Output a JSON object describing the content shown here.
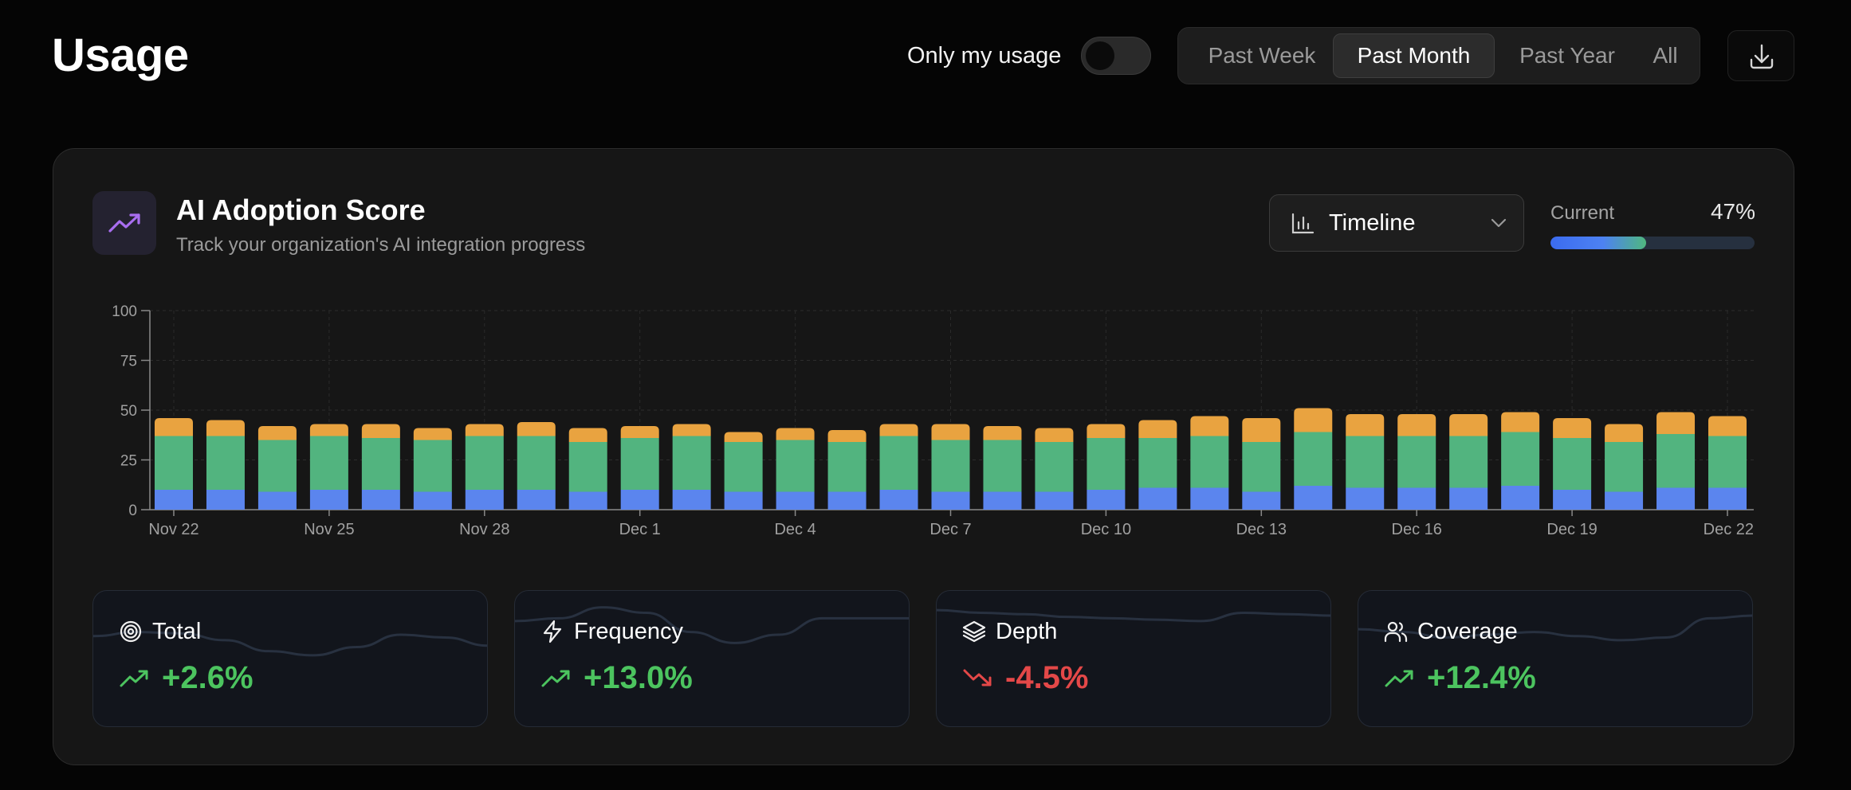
{
  "header": {
    "title": "Usage",
    "toggle_label": "Only my usage",
    "toggle_on": false,
    "ranges": [
      "Past Week",
      "Past Month",
      "Past Year",
      "All"
    ],
    "active_range": "Past Month",
    "download_icon": "download-icon"
  },
  "card": {
    "icon": "trending-up-icon",
    "title": "AI Adoption Score",
    "subtitle": "Track your organization's AI integration progress",
    "view_select": {
      "icon": "bar-chart-icon",
      "value": "Timeline",
      "chevron": "chevron-down-icon"
    },
    "progress": {
      "label": "Current",
      "value_text": "47%",
      "fraction": 0.47
    }
  },
  "chart_data": {
    "type": "bar",
    "stacked": true,
    "x_ticks": [
      "Nov 22",
      "Nov 25",
      "Nov 28",
      "Dec 1",
      "Dec 4",
      "Dec 7",
      "Dec 10",
      "Dec 13",
      "Dec 16",
      "Dec 19",
      "Dec 22"
    ],
    "y_ticks": [
      0,
      25,
      50,
      75,
      100
    ],
    "ylim": [
      0,
      100
    ],
    "grid": true,
    "categories": [
      "Nov 22",
      "Nov 23",
      "Nov 24",
      "Nov 25",
      "Nov 26",
      "Nov 27",
      "Nov 28",
      "Nov 29",
      "Nov 30",
      "Dec 1",
      "Dec 2",
      "Dec 3",
      "Dec 4",
      "Dec 5",
      "Dec 6",
      "Dec 7",
      "Dec 8",
      "Dec 9",
      "Dec 10",
      "Dec 11",
      "Dec 12",
      "Dec 13",
      "Dec 14",
      "Dec 15",
      "Dec 16",
      "Dec 17",
      "Dec 18",
      "Dec 19",
      "Dec 20",
      "Dec 21",
      "Dec 22"
    ],
    "series": [
      {
        "color": "#5b85ee",
        "values": [
          10,
          10,
          9,
          10,
          10,
          9,
          10,
          10,
          9,
          10,
          10,
          9,
          9,
          9,
          10,
          9,
          9,
          9,
          10,
          11,
          11,
          9,
          12,
          11,
          11,
          11,
          12,
          10,
          9,
          11,
          11
        ]
      },
      {
        "color": "#52b47f",
        "values": [
          27,
          27,
          26,
          27,
          26,
          26,
          27,
          27,
          25,
          26,
          27,
          25,
          26,
          25,
          27,
          26,
          26,
          25,
          26,
          25,
          26,
          25,
          27,
          26,
          26,
          26,
          27,
          26,
          25,
          27,
          26
        ]
      },
      {
        "color": "#e9a340",
        "values": [
          9,
          8,
          7,
          6,
          7,
          6,
          6,
          7,
          7,
          6,
          6,
          5,
          6,
          6,
          6,
          8,
          7,
          7,
          7,
          9,
          10,
          12,
          12,
          11,
          11,
          11,
          10,
          10,
          9,
          11,
          10
        ]
      }
    ]
  },
  "stats": [
    {
      "icon": "target-icon",
      "name": "Total",
      "trend_icon": "trend-up-icon",
      "value": "+2.6%",
      "color": "#4cc45f",
      "spark": [
        0.33,
        0.3,
        0.31,
        0.36,
        0.44,
        0.47,
        0.41,
        0.32,
        0.34,
        0.4
      ]
    },
    {
      "icon": "zap-icon",
      "name": "Frequency",
      "trend_icon": "trend-up-icon",
      "value": "+13.0%",
      "color": "#4cc45f",
      "spark": [
        0.22,
        0.2,
        0.12,
        0.16,
        0.3,
        0.38,
        0.32,
        0.2,
        0.2,
        0.2
      ]
    },
    {
      "icon": "layers-icon",
      "name": "Depth",
      "trend_icon": "trend-down-icon",
      "value": "-4.5%",
      "color": "#e44848",
      "spark": [
        0.14,
        0.16,
        0.17,
        0.19,
        0.2,
        0.21,
        0.22,
        0.16,
        0.17,
        0.18
      ]
    },
    {
      "icon": "users-icon",
      "name": "Coverage",
      "trend_icon": "trend-up-icon",
      "value": "+12.4%",
      "color": "#4cc45f",
      "spark": [
        0.28,
        0.3,
        0.34,
        0.32,
        0.3,
        0.33,
        0.36,
        0.34,
        0.2,
        0.18
      ]
    }
  ]
}
